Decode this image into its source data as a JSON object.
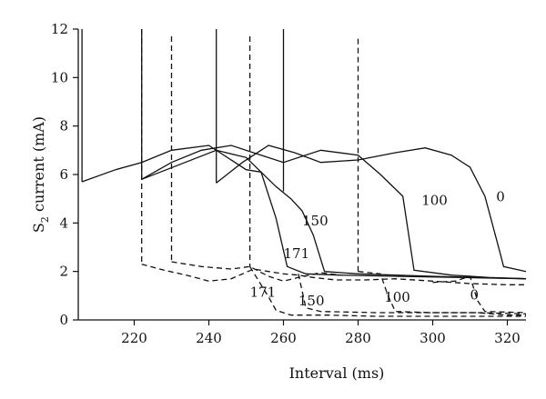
{
  "chart_data": {
    "type": "line",
    "xlabel": "Interval (ms)",
    "ylabel_main": "S",
    "ylabel_sub": "2",
    "ylabel_rest": " current (mA)",
    "xlim": [
      205,
      325
    ],
    "ylim": [
      0,
      12
    ],
    "x_ticks": [
      220,
      240,
      260,
      280,
      300,
      320
    ],
    "y_ticks": [
      0,
      2,
      4,
      6,
      8,
      10,
      12
    ],
    "grid": false,
    "solid_spikes": [
      {
        "x": 206,
        "y_top": 12,
        "y_bottom": 5.7
      },
      {
        "x": 222,
        "y_top": 12,
        "y_bottom": 5.8
      },
      {
        "x": 242,
        "y_top": 12,
        "y_bottom": 5.65
      },
      {
        "x": 260,
        "y_top": 12,
        "y_bottom": 5.3
      }
    ],
    "dashed_spikes": [
      {
        "x": 222,
        "y_top": 12,
        "y_bottom": 2.3
      },
      {
        "x": 230,
        "y_top": 11.7,
        "y_bottom": 2.4
      },
      {
        "x": 251,
        "y_top": 11.7,
        "y_bottom": 2.2
      },
      {
        "x": 280,
        "y_top": 11.6,
        "y_bottom": 2.0
      }
    ],
    "series": [
      {
        "name": "0",
        "style": "solid",
        "points": [
          [
            242,
            5.65
          ],
          [
            249,
            6.5
          ],
          [
            256,
            7.2
          ],
          [
            263,
            6.9
          ],
          [
            270,
            6.5
          ],
          [
            280,
            6.6
          ],
          [
            290,
            6.9
          ],
          [
            298,
            7.1
          ],
          [
            305,
            6.8
          ],
          [
            310,
            6.3
          ],
          [
            314,
            5.1
          ],
          [
            318,
            2.8
          ],
          [
            319,
            2.2
          ],
          [
            325,
            2.0
          ]
        ]
      },
      {
        "name": "100",
        "style": "solid",
        "points": [
          [
            222,
            5.8
          ],
          [
            230,
            6.5
          ],
          [
            238,
            7.0
          ],
          [
            246,
            7.2
          ],
          [
            254,
            6.8
          ],
          [
            260,
            6.5
          ],
          [
            270,
            7.0
          ],
          [
            280,
            6.8
          ],
          [
            286,
            6.0
          ],
          [
            292,
            5.1
          ],
          [
            295,
            2.05
          ],
          [
            305,
            1.85
          ],
          [
            315,
            1.75
          ],
          [
            325,
            1.7
          ]
        ]
      },
      {
        "name": "150",
        "style": "solid",
        "points": [
          [
            206,
            5.7
          ],
          [
            215,
            6.2
          ],
          [
            222,
            6.5
          ],
          [
            230,
            7.0
          ],
          [
            240,
            7.2
          ],
          [
            250,
            6.2
          ],
          [
            254,
            6.1
          ],
          [
            258,
            4.2
          ],
          [
            261,
            2.2
          ],
          [
            266,
            1.9
          ],
          [
            275,
            1.85
          ],
          [
            290,
            1.8
          ],
          [
            325,
            1.7
          ]
        ]
      },
      {
        "name": "171",
        "style": "solid",
        "points": [
          [
            222,
            5.8
          ],
          [
            232,
            6.4
          ],
          [
            242,
            7.0
          ],
          [
            250,
            6.7
          ],
          [
            254,
            6.1
          ],
          [
            258,
            5.5
          ],
          [
            262,
            5.0
          ],
          [
            265,
            4.5
          ],
          [
            268,
            3.5
          ],
          [
            271,
            2.0
          ],
          [
            280,
            1.9
          ],
          [
            300,
            1.8
          ],
          [
            325,
            1.7
          ]
        ]
      },
      {
        "name": "171",
        "style": "dashed",
        "points": [
          [
            222,
            2.3
          ],
          [
            228,
            2.05
          ],
          [
            234,
            1.85
          ],
          [
            240,
            1.6
          ],
          [
            246,
            1.7
          ],
          [
            252,
            2.1
          ],
          [
            256,
            2.0
          ],
          [
            260,
            1.9
          ],
          [
            264,
            1.85
          ],
          [
            268,
            1.75
          ],
          [
            274,
            1.65
          ],
          [
            282,
            1.65
          ],
          [
            290,
            1.7
          ],
          [
            300,
            1.6
          ],
          [
            310,
            1.5
          ],
          [
            320,
            1.45
          ],
          [
            325,
            1.45
          ]
        ]
      },
      {
        "name": "150",
        "style": "dashed",
        "points": [
          [
            230,
            2.4
          ],
          [
            238,
            2.2
          ],
          [
            246,
            2.1
          ],
          [
            251,
            2.2
          ],
          [
            256,
            1.8
          ],
          [
            260,
            1.6
          ],
          [
            264,
            1.75
          ],
          [
            270,
            1.95
          ],
          [
            275,
            1.85
          ]
        ]
      },
      {
        "name": "100",
        "style": "dashed",
        "points": [
          [
            251,
            2.2
          ],
          [
            256,
            0.95
          ],
          [
            258,
            0.4
          ],
          [
            262,
            0.2
          ],
          [
            272,
            0.2
          ],
          [
            285,
            0.15
          ],
          [
            300,
            0.15
          ],
          [
            325,
            0.15
          ]
        ]
      },
      {
        "name": "0",
        "style": "dashed",
        "points": [
          [
            264,
            1.9
          ],
          [
            266,
            0.5
          ],
          [
            270,
            0.35
          ],
          [
            285,
            0.3
          ],
          [
            300,
            0.3
          ],
          [
            312,
            0.3
          ],
          [
            320,
            0.2
          ],
          [
            325,
            0.2
          ]
        ]
      },
      {
        "name": "",
        "style": "dashed",
        "points": [
          [
            280,
            2.0
          ],
          [
            286,
            1.9
          ],
          [
            288,
            1.0
          ],
          [
            290,
            0.35
          ],
          [
            300,
            0.3
          ],
          [
            312,
            0.3
          ],
          [
            325,
            0.25
          ]
        ]
      },
      {
        "name": "",
        "style": "dashed",
        "points": [
          [
            300,
            1.55
          ],
          [
            306,
            1.6
          ],
          [
            310,
            1.8
          ],
          [
            312,
            0.8
          ],
          [
            314,
            0.35
          ],
          [
            325,
            0.3
          ]
        ]
      }
    ],
    "curve_labels": [
      {
        "text": "0",
        "x": 317,
        "y": 4.9
      },
      {
        "text": "100",
        "x": 297,
        "y": 4.75
      },
      {
        "text": "150",
        "x": 265,
        "y": 3.9
      },
      {
        "text": "171",
        "x": 260,
        "y": 2.55
      },
      {
        "text": "171",
        "x": 251,
        "y": 0.95
      },
      {
        "text": "150",
        "x": 264,
        "y": 0.6
      },
      {
        "text": "100",
        "x": 287,
        "y": 0.75
      },
      {
        "text": "0",
        "x": 310,
        "y": 0.85
      }
    ]
  }
}
